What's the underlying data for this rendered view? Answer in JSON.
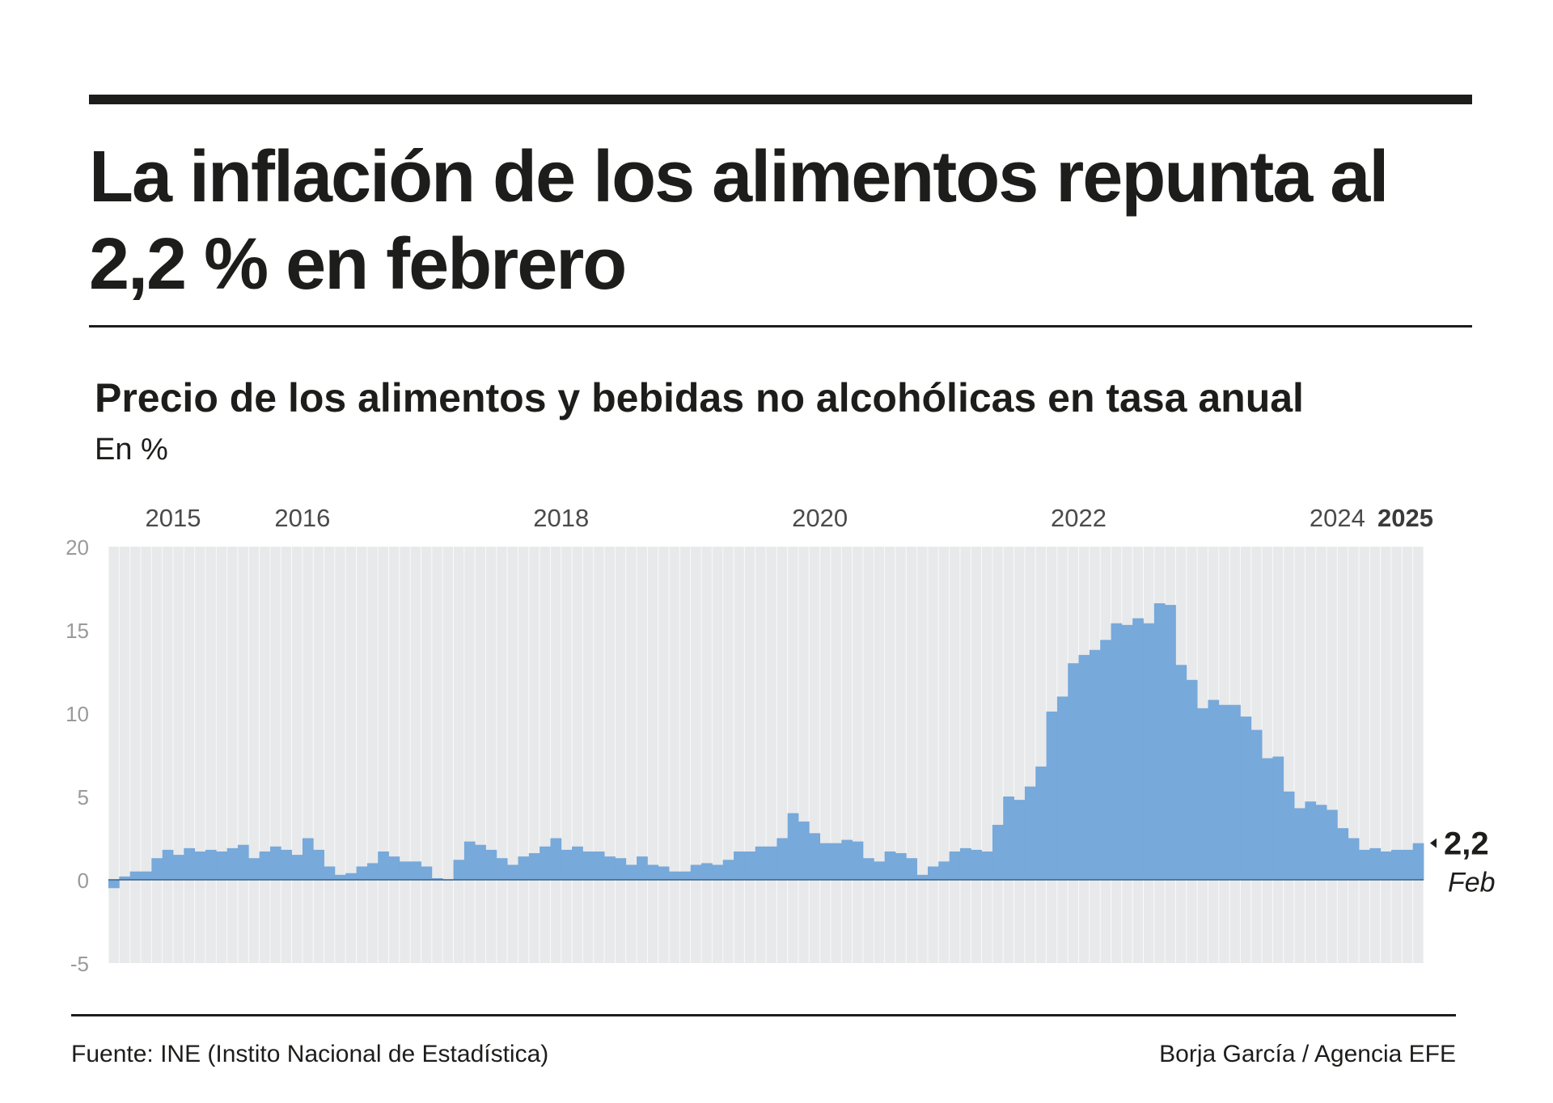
{
  "header": {
    "title": "La inflación de los alimentos repunta al 2,2 % en febrero"
  },
  "footer": {
    "source": "Fuente: INE (Instito Nacional de Estadística)",
    "credit": "Borja García / Agencia EFE"
  },
  "colors": {
    "bars": "#77a9da",
    "band": "#e8e9eb",
    "axis_text": "#4a4a4a",
    "tick_text": "#9a9a9a",
    "text": "#1d1d1b"
  },
  "chart_data": {
    "type": "bar",
    "title": "Precio de los alimentos y bebidas no alcohólicas en tasa anual",
    "subtitle": "En %",
    "xlabel": "",
    "ylabel": "",
    "ylim": [
      -5,
      20
    ],
    "yticks": [
      -5,
      0,
      5,
      10,
      15,
      20
    ],
    "ytick_labels": [
      "-5",
      "0",
      "5",
      "10",
      "15",
      "20"
    ],
    "grid": true,
    "year_labels": [
      {
        "label": "2015",
        "year": 2015,
        "bold": false
      },
      {
        "label": "2016",
        "year": 2016,
        "bold": false
      },
      {
        "label": "2018",
        "year": 2018,
        "bold": false
      },
      {
        "label": "2020",
        "year": 2020,
        "bold": false
      },
      {
        "label": "2022",
        "year": 2022,
        "bold": false
      },
      {
        "label": "2024",
        "year": 2024,
        "bold": false
      },
      {
        "label": "2025",
        "year": 2025,
        "bold": true
      }
    ],
    "start": "2015-01",
    "end": "2025-02",
    "values": [
      -0.5,
      0.2,
      0.5,
      0.5,
      1.3,
      1.8,
      1.5,
      1.9,
      1.7,
      1.8,
      1.7,
      1.9,
      2.1,
      1.3,
      1.7,
      2.0,
      1.8,
      1.5,
      2.5,
      1.8,
      0.8,
      0.3,
      0.4,
      0.8,
      1.0,
      1.7,
      1.4,
      1.1,
      1.1,
      0.8,
      0.1,
      0.0,
      1.2,
      2.3,
      2.1,
      1.8,
      1.3,
      0.9,
      1.4,
      1.6,
      2.0,
      2.5,
      1.8,
      2.0,
      1.7,
      1.7,
      1.4,
      1.3,
      0.9,
      1.4,
      0.9,
      0.8,
      0.5,
      0.5,
      0.9,
      1.0,
      0.9,
      1.2,
      1.7,
      1.7,
      2.0,
      2.0,
      2.5,
      4.0,
      3.5,
      2.8,
      2.2,
      2.2,
      2.4,
      2.3,
      1.3,
      1.1,
      1.7,
      1.6,
      1.3,
      0.3,
      0.8,
      1.1,
      1.7,
      1.9,
      1.8,
      1.7,
      3.3,
      5.0,
      4.8,
      5.6,
      6.8,
      10.1,
      11.0,
      13.0,
      13.5,
      13.8,
      14.4,
      15.4,
      15.3,
      15.7,
      15.4,
      16.6,
      16.5,
      12.9,
      12.0,
      10.3,
      10.8,
      10.5,
      10.5,
      9.8,
      9.0,
      7.3,
      7.4,
      5.3,
      4.3,
      4.7,
      4.5,
      4.2,
      3.1,
      2.5,
      1.8,
      1.9,
      1.7,
      1.8,
      1.8,
      2.2
    ],
    "last_value_label": "2,2",
    "last_month_label": "Feb"
  }
}
